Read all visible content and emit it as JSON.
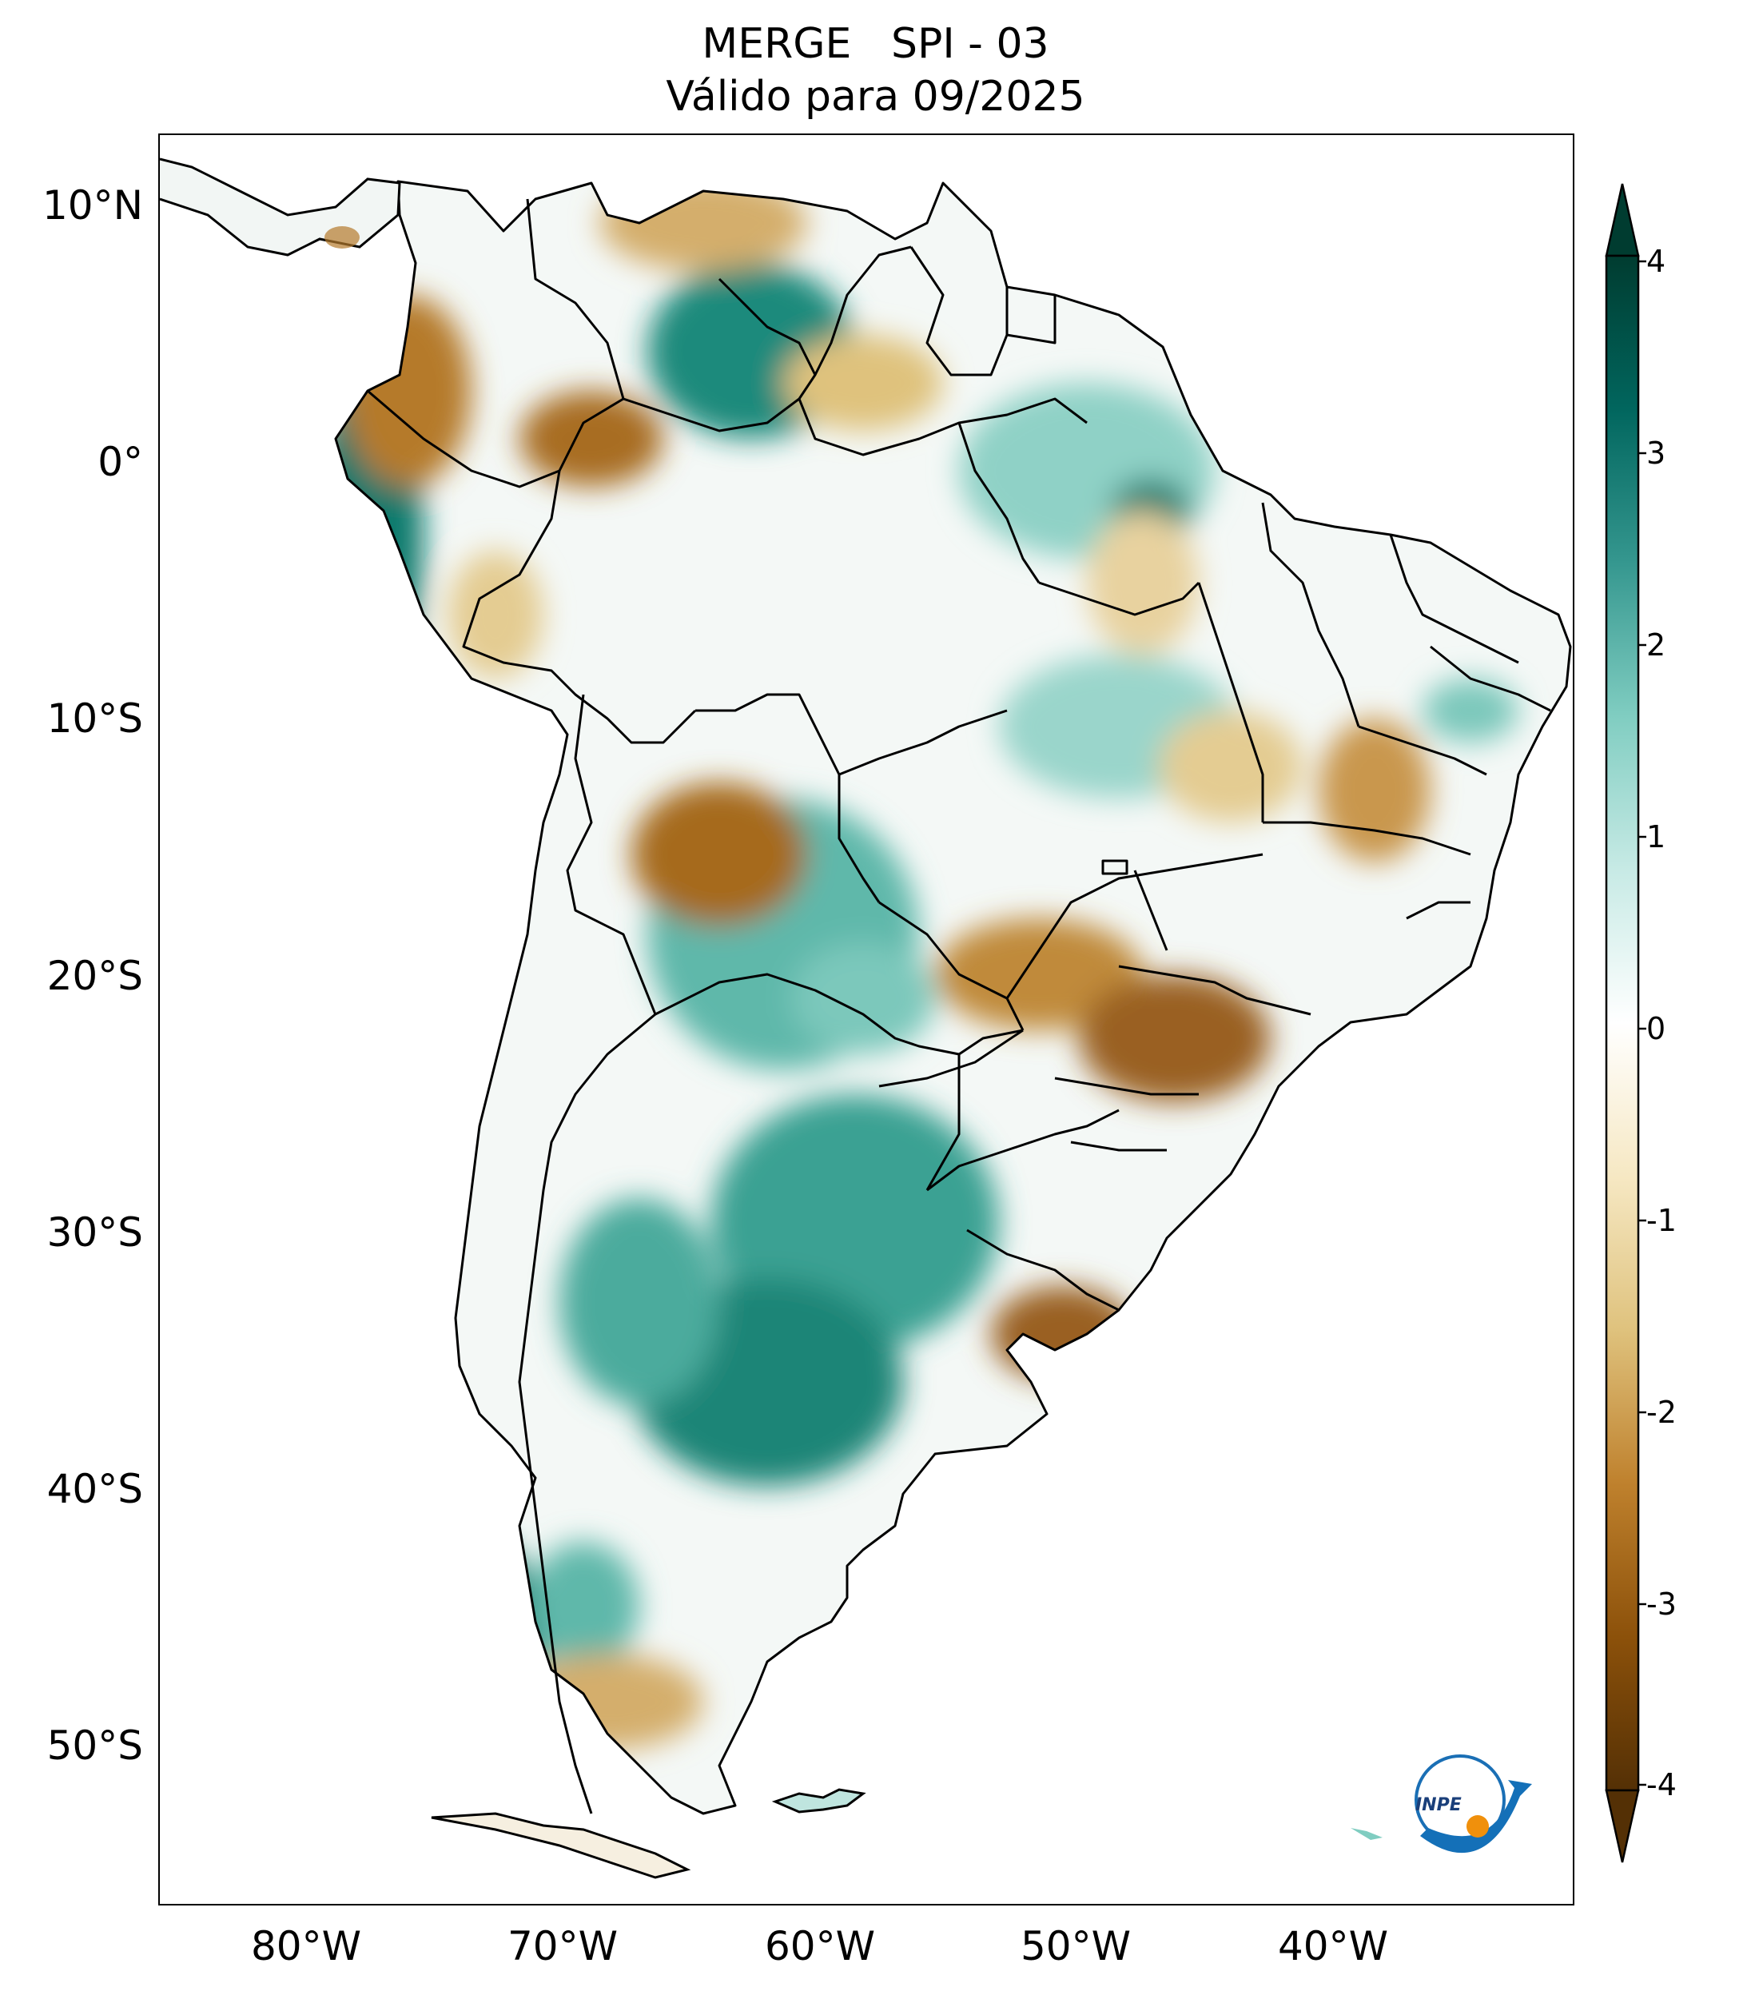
{
  "title": {
    "line1": "MERGE   SPI - 03",
    "line2": "Válido para 09/2025"
  },
  "map": {
    "region": "South America",
    "variable": "SPI - 03",
    "lat_ticks": [
      "10°N",
      "0°",
      "10°S",
      "20°S",
      "30°S",
      "40°S",
      "50°S"
    ],
    "lon_ticks": [
      "80°W",
      "70°W",
      "60°W",
      "50°W",
      "40°W"
    ],
    "lat_values": [
      10,
      0,
      -10,
      -20,
      -30,
      -40,
      -50
    ],
    "lon_values": [
      -80,
      -70,
      -60,
      -50,
      -40
    ],
    "extent": {
      "lon_min": -85,
      "lon_max": -29.5,
      "lat_min": -56,
      "lat_max": 12.5
    }
  },
  "colorbar": {
    "ticks": [
      "4",
      "3",
      "2",
      "1",
      "0",
      "-1",
      "-2",
      "-3",
      "-4"
    ],
    "values": [
      4,
      3,
      2,
      1,
      0,
      -1,
      -2,
      -3,
      -4
    ],
    "min": -4,
    "max": 4,
    "extend": "both",
    "colormap": "BrBG",
    "colors": [
      "#543005",
      "#8c510a",
      "#bf812d",
      "#dfc27d",
      "#f6e8c3",
      "#ffffff",
      "#c7eae5",
      "#80cdc1",
      "#35978f",
      "#01665e",
      "#003c30"
    ]
  },
  "logo": {
    "text": "INPE"
  }
}
